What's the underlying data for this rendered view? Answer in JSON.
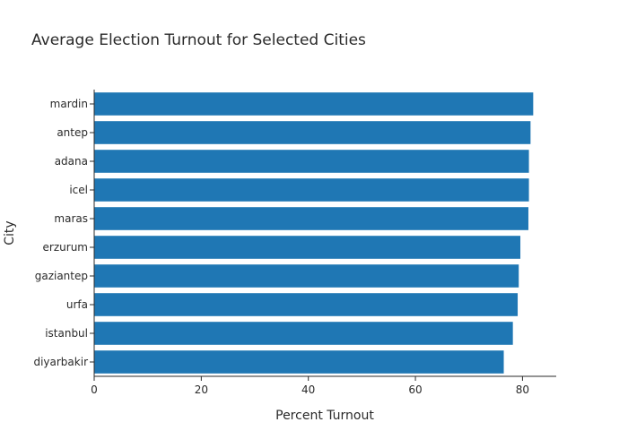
{
  "chart_data": {
    "type": "bar",
    "orientation": "horizontal",
    "title": "Average Election Turnout for Selected Cities",
    "xlabel": "Percent Turnout",
    "ylabel": "City",
    "categories": [
      "mardin",
      "antep",
      "adana",
      "icel",
      "maras",
      "erzurum",
      "gaziantep",
      "urfa",
      "istanbul",
      "diyarbakir"
    ],
    "values": [
      82.0,
      81.5,
      81.2,
      81.2,
      81.1,
      79.6,
      79.3,
      79.1,
      78.2,
      76.5
    ],
    "xlim": [
      0,
      86.3
    ],
    "xticks": [
      0,
      20,
      40,
      60,
      80
    ],
    "grid": false,
    "bar_color": "#1f77b4"
  }
}
